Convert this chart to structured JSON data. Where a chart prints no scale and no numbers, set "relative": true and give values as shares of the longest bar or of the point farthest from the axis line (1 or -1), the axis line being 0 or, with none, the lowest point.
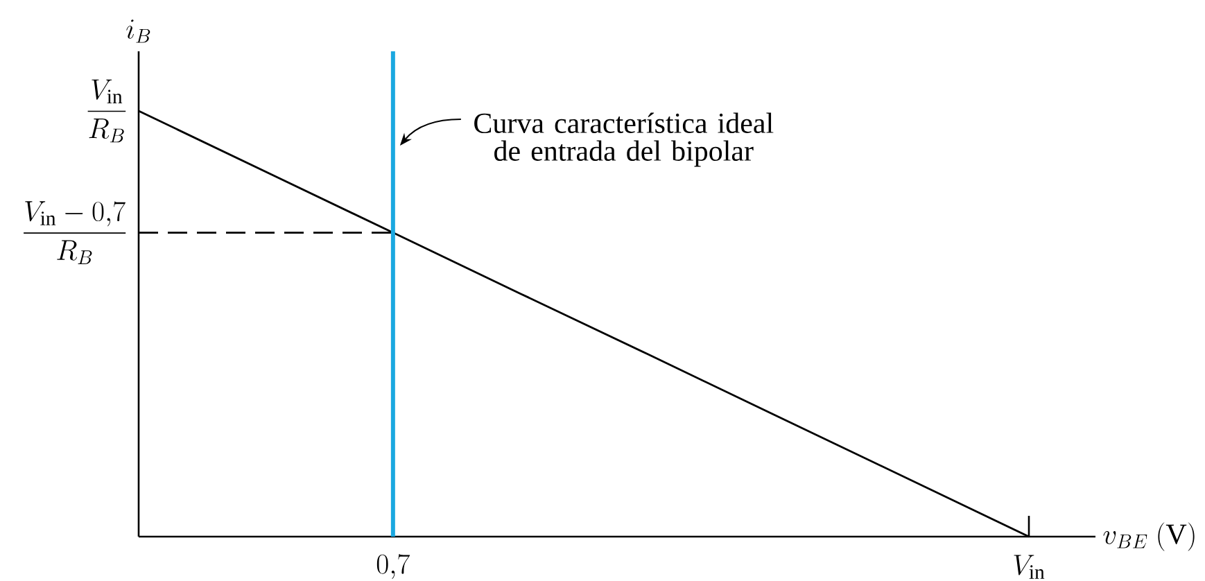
{
  "chart_data": {
    "type": "line",
    "relative": true,
    "xlabel": "v_{BE}\\ \\mathrm{(V)}",
    "ylabel": "i_B",
    "categories": [
      null,
      null,
      "0{,}7",
      null,
      null,
      null,
      null,
      "V_{\\mathrm{in}}"
    ],
    "series": [
      {
        "color": "#000000",
        "values": [
          1,
          0.857,
          0.714,
          0.571,
          0.429,
          0.286,
          0.143,
          0
        ]
      },
      {
        "color": "#000000",
        "values": [
          0.714,
          0.714,
          0.714,
          null,
          null,
          null,
          null,
          null
        ],
        "line_style": "dashed"
      }
    ],
    "ref_lines": [
      {
        "axis": "x",
        "value": "0{,}7",
        "label": "Curva característica ideal de entrada del bipolar",
        "color": "#1ba8e0"
      }
    ],
    "annotations": [
      "\\frac{V_{\\mathrm{in}}}{R_B}",
      "\\frac{V_{\\mathrm{in}}-0{,}7}{R_B}"
    ]
  }
}
